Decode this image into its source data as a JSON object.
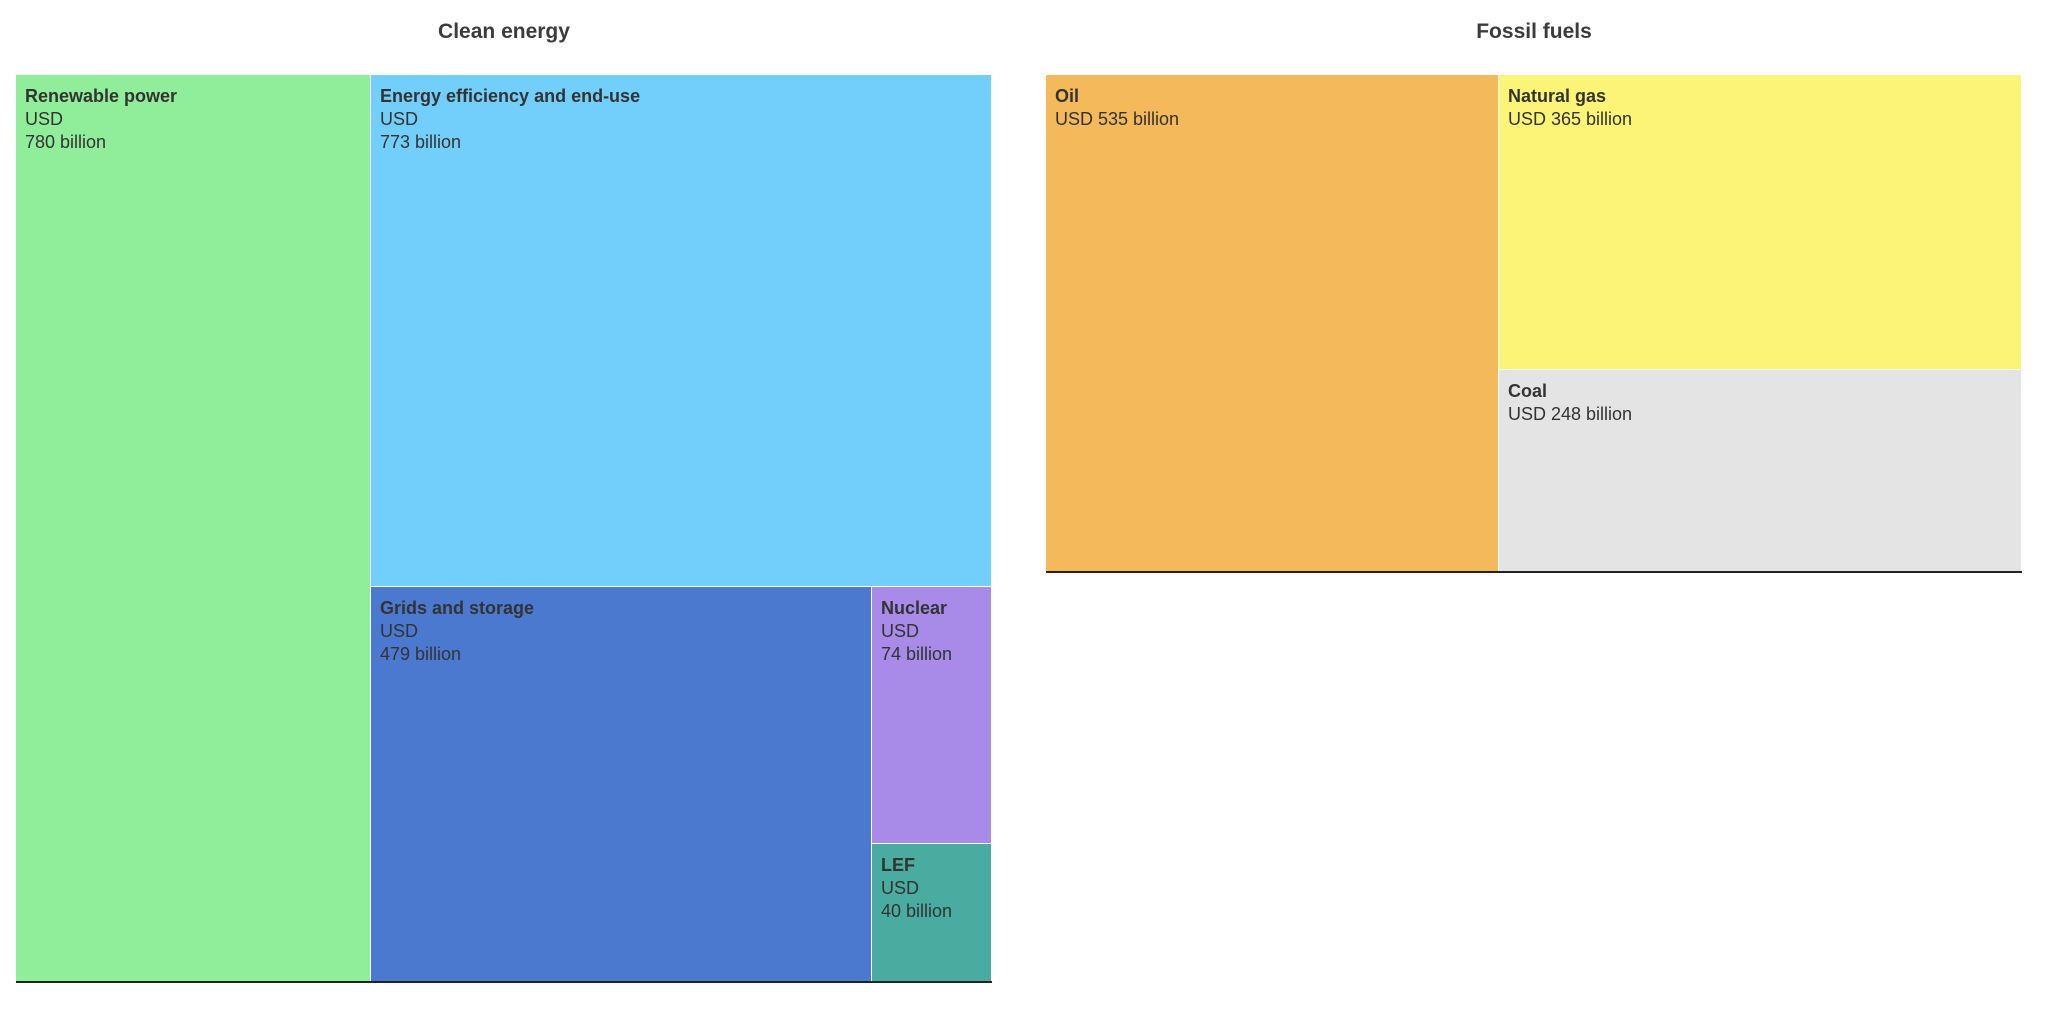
{
  "chart_data": [
    {
      "type": "treemap",
      "title": "Clean energy",
      "items": [
        {
          "name": "Renewable power",
          "value_label": "USD\n780 billion",
          "value": 780,
          "color": "#90ee9b"
        },
        {
          "name": "Energy efficiency and end-use",
          "value_label": "USD\n773 billion",
          "value": 773,
          "color": "#72cefb"
        },
        {
          "name": "Grids and storage",
          "value_label": "USD\n479 billion",
          "value": 479,
          "color": "#4b79cf"
        },
        {
          "name": "Nuclear",
          "value_label": "USD\n74 billion",
          "value": 74,
          "color": "#a88ae8"
        },
        {
          "name": "LEF",
          "value_label": "USD\n40 billion",
          "value": 40,
          "color": "#4aaba0"
        }
      ]
    },
    {
      "type": "treemap",
      "title": "Fossil fuels",
      "items": [
        {
          "name": "Oil",
          "value_label": "USD 535 billion",
          "value": 535,
          "color": "#f3b95a"
        },
        {
          "name": "Natural gas",
          "value_label": "USD 365 billion",
          "value": 365,
          "color": "#fbf476"
        },
        {
          "name": "Coal",
          "value_label": "USD 248 billion",
          "value": 248,
          "color": "#e4e4e4"
        }
      ]
    }
  ]
}
